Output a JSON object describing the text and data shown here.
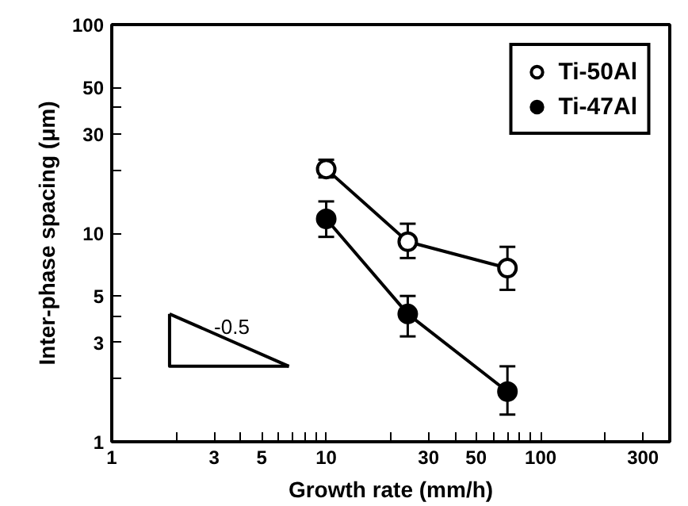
{
  "chart_data": {
    "type": "line",
    "xlabel": "Growth rate (mm/h)",
    "ylabel": "Inter-phase spacing (μm)",
    "log": "xy",
    "grid": false,
    "legend": "top right",
    "marker": "circle",
    "line_style": "solid",
    "xlim": [
      1,
      400
    ],
    "xticks": [
      1,
      {
        "value": 2,
        "label": null
      },
      3,
      {
        "value": 4,
        "label": null
      },
      5,
      {
        "value": 6,
        "label": null
      },
      {
        "value": 7,
        "label": null
      },
      {
        "value": 8,
        "label": null
      },
      {
        "value": 9,
        "label": null
      },
      10,
      {
        "value": 20,
        "label": null
      },
      30,
      {
        "value": 40,
        "label": null
      },
      50,
      {
        "value": 60,
        "label": null
      },
      {
        "value": 70,
        "label": null
      },
      {
        "value": 80,
        "label": null
      },
      {
        "value": 90,
        "label": null
      },
      100,
      {
        "value": 200,
        "label": null
      },
      300
    ],
    "ylim": [
      1,
      100
    ],
    "yticks": [
      1,
      {
        "value": 2,
        "label": null
      },
      3,
      {
        "value": 4,
        "label": null
      },
      5,
      10,
      {
        "value": 20,
        "label": null
      },
      30,
      {
        "value": 40,
        "label": null
      },
      50,
      100
    ],
    "annotations": [
      "-0.5"
    ],
    "series": [
      {
        "name": "Ti-50Al",
        "color": "#ffffff",
        "x": [
          10,
          24,
          70
        ],
        "values": [
          20.3,
          9.1,
          6.8
        ],
        "errors": [
          [
            18.5,
            22.5
          ],
          [
            7.6,
            11.1
          ],
          [
            5.35,
            8.6
          ]
        ]
      },
      {
        "name": "Ti-47Al",
        "color": "#000000",
        "x": [
          10,
          24,
          70
        ],
        "values": [
          11.7,
          4.1,
          1.74
        ],
        "errors": [
          [
            9.6,
            14.2
          ],
          [
            3.2,
            5.0
          ],
          [
            1.35,
            2.3
          ]
        ]
      },
      {
        "color": "#000000",
        "marker": "none",
        "x": [
          1.86,
          6.7
        ],
        "values": [
          4.1,
          2.3
        ]
      },
      {
        "color": "#000000",
        "marker": "none",
        "x": [
          1.86,
          1.86,
          6.7
        ],
        "values": [
          4.1,
          2.3,
          2.3
        ]
      }
    ]
  }
}
